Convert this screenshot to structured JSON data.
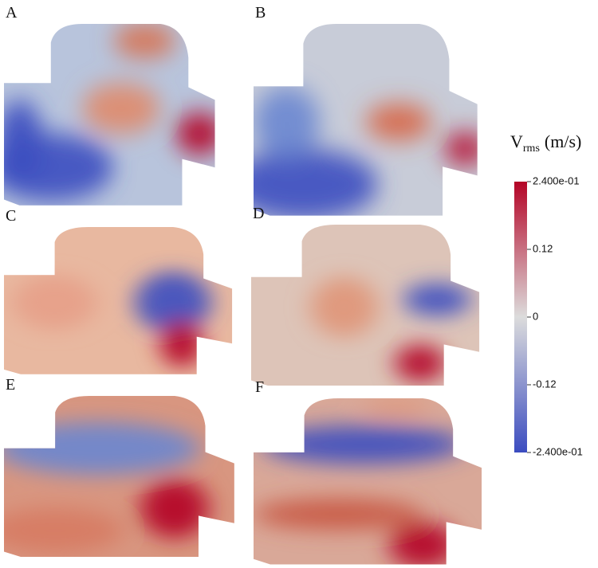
{
  "panels": [
    {
      "label": "A"
    },
    {
      "label": "B"
    },
    {
      "label": "C"
    },
    {
      "label": "D"
    },
    {
      "label": "E"
    },
    {
      "label": "F"
    }
  ],
  "colorbar": {
    "title": "V",
    "subscript": "rms",
    "unit": "(m/s)",
    "range": [
      -0.24,
      0.24
    ],
    "colors": [
      "#3b4cc0",
      "#dcdcdc",
      "#b40426"
    ],
    "ticks": [
      {
        "value": 0.24,
        "label": "2.400e-01"
      },
      {
        "value": 0.12,
        "label": "0.12"
      },
      0,
      {
        "value": -0.12,
        "label": "-0.12"
      },
      {
        "value": -0.24,
        "label": "-2.400e-01"
      }
    ]
  }
}
